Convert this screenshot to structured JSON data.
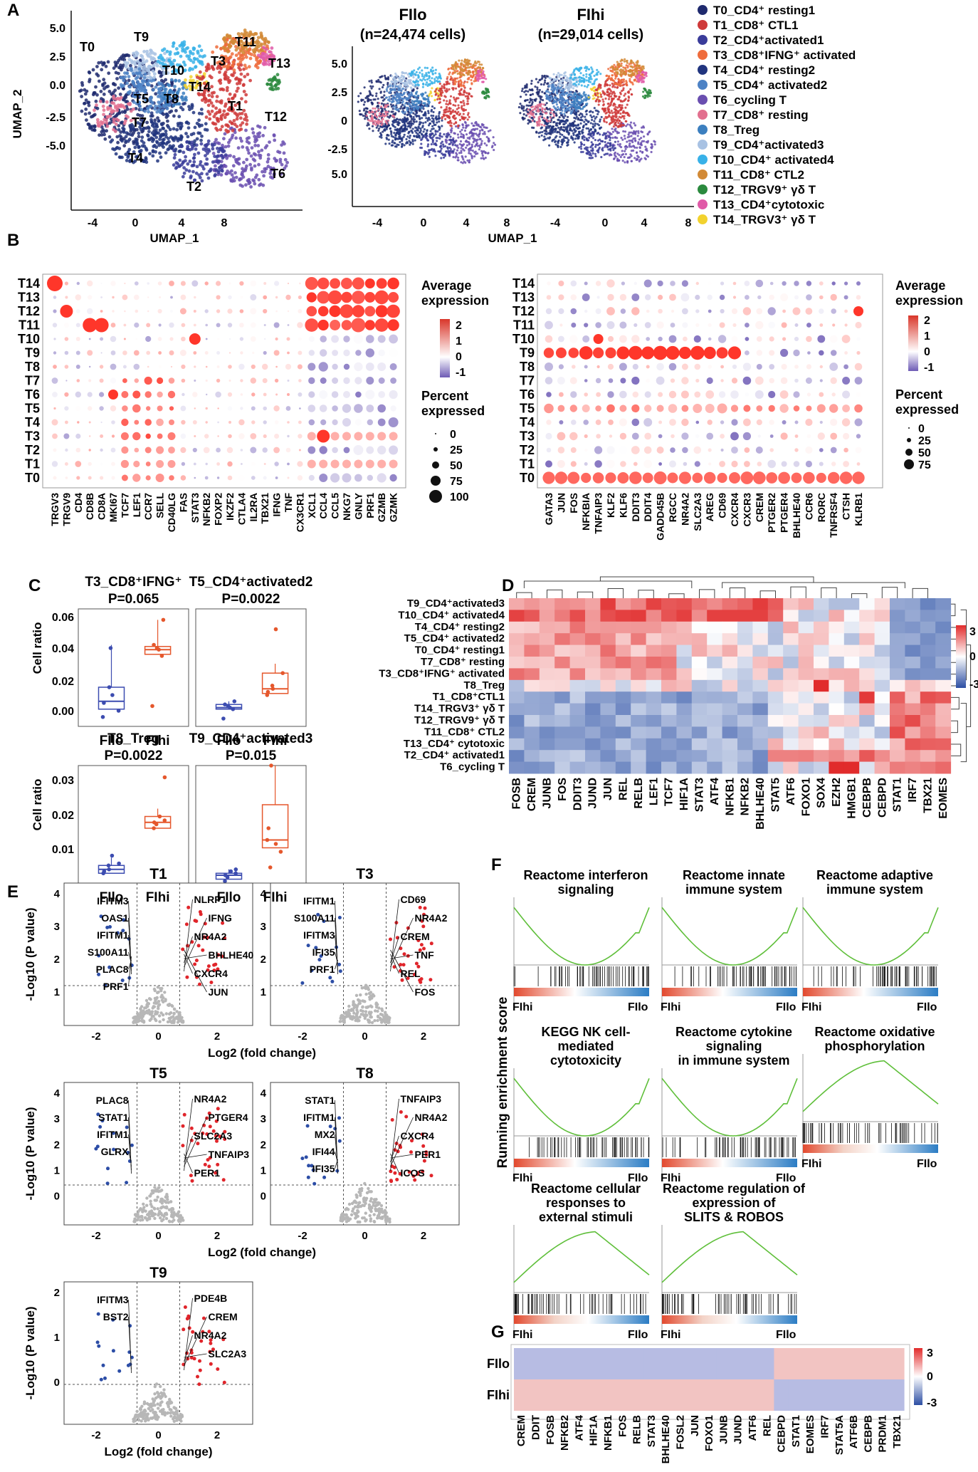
{
  "panels": {
    "a": "A",
    "b": "B",
    "c": "C",
    "d": "D",
    "e": "E",
    "f": "F",
    "g": "G"
  },
  "panelA": {
    "y_label": "UMAP_2",
    "x_label": "UMAP_1",
    "left_yticks": [
      "5.0",
      "2.5",
      "0.0",
      "-2.5",
      "-5.0"
    ],
    "left_xticks": [
      "-4",
      "0",
      "4",
      "8"
    ],
    "mid_yticks": [
      "5.0",
      "2.5",
      "0",
      "-2.5",
      "5.0"
    ],
    "right_xticks": [
      "-4",
      "0",
      "4",
      "8"
    ],
    "lo_title": "FIlo",
    "lo_sub": "(n=24,474 cells)",
    "hi_title": "FIhi",
    "hi_sub": "(n=29,014 cells)",
    "cluster_labels": [
      "T0",
      "T9",
      "T11",
      "T13",
      "T3",
      "T10",
      "T14",
      "T5",
      "T8",
      "T1",
      "T12",
      "T7",
      "T4",
      "T2",
      "T6"
    ],
    "clusters": [
      {
        "label": "T0_CD4⁺ resting1",
        "color": "#1f2a6e"
      },
      {
        "label": "T1_CD8⁺ CTL1",
        "color": "#cf3a3a"
      },
      {
        "label": "T2_CD4⁺activated1",
        "color": "#3a3c9a"
      },
      {
        "label": "T3_CD8⁺IFNG⁺ activated",
        "color": "#ef6c3c"
      },
      {
        "label": "T4_CD4⁺ resting2",
        "color": "#21357f"
      },
      {
        "label": "T5_CD4⁺ activated2",
        "color": "#4d82c5"
      },
      {
        "label": "T6_cycling T",
        "color": "#6a4fb0"
      },
      {
        "label": "T7_CD8⁺ resting",
        "color": "#e2708f"
      },
      {
        "label": "T8_Treg",
        "color": "#3c7fbf"
      },
      {
        "label": "T9_CD4⁺activated3",
        "color": "#a8c2e3"
      },
      {
        "label": "T10_CD4⁺ activated4",
        "color": "#38b1e8"
      },
      {
        "label": "T11_CD8⁺ CTL2",
        "color": "#d28a36"
      },
      {
        "label": "T12_TRGV9⁺ γδ T",
        "color": "#2b8a3e"
      },
      {
        "label": "T13_CD4⁺cytotoxic",
        "color": "#e05aa8"
      },
      {
        "label": "T14_TRGV3⁺ γδ T",
        "color": "#f2d22e"
      }
    ]
  },
  "panelB": {
    "rows": [
      "T14",
      "T13",
      "T12",
      "T11",
      "T10",
      "T9",
      "T8",
      "T7",
      "T6",
      "T5",
      "T4",
      "T3",
      "T2",
      "T1",
      "T0"
    ],
    "left_genes": [
      "TRGV3",
      "TRGV9",
      "CD4",
      "CD8B",
      "CD8A",
      "MKI67",
      "TCF7",
      "LEF1",
      "CCR7",
      "SELL",
      "CD40LG",
      "FAS",
      "STAT3",
      "NFKB2",
      "FOXP2",
      "IKZF2",
      "CTLA4",
      "IL2RA",
      "TBX21",
      "IFNG",
      "TNF",
      "CX3CR1",
      "XCL1",
      "CCL4",
      "CCL5",
      "NKG7",
      "GNLY",
      "PRF1",
      "GZMB",
      "GZMK"
    ],
    "right_genes": [
      "GATA3",
      "JUN",
      "FOS",
      "NFKBIA",
      "TNFAIP3",
      "KLF2",
      "KLF6",
      "DDIT3",
      "DDIT4",
      "GADD45B",
      "RGCC",
      "NR4A2",
      "SLC2A3",
      "AREG",
      "CD69",
      "CXCR4",
      "CXCR3",
      "CREM",
      "PTGER2",
      "PTGER4",
      "BHLHE40",
      "CCR6",
      "RORC",
      "TNFRSF4",
      "CTSH",
      "KLRB1"
    ],
    "avg_title1": "Average",
    "avg_title2": "expression",
    "avg_ticks": [
      "2",
      "1",
      "0",
      "-1"
    ],
    "pct_title1": "Percent",
    "pct_title2": "expressed",
    "pct_left": [
      "0",
      "25",
      "50",
      "75",
      "100"
    ],
    "pct_right": [
      "0",
      "25",
      "50",
      "75"
    ]
  },
  "panelC": {
    "ylabel": "Cell ratio",
    "groups": [
      "FIlo",
      "FIhi"
    ],
    "plots": [
      {
        "title": "T3_CD8⁺IFNG⁺",
        "p": "P=0.065",
        "yticks": [
          "0.06",
          "0.04",
          "0.02",
          "0.00"
        ]
      },
      {
        "title": "T5_CD4⁺activated2",
        "p": "P=0.0022",
        "yticks": []
      },
      {
        "title": "T8_Treg",
        "p": "P=0.0022",
        "yticks": [
          "0.03",
          "0.02",
          "0.01"
        ]
      },
      {
        "title": "T9_CD4⁺activated3",
        "p": "P=0.015",
        "yticks": []
      }
    ]
  },
  "panelD": {
    "rows": [
      "T9_CD4⁺activated3",
      "T10_CD4⁺ activated4",
      "T4_CD4⁺ resting2",
      "T5_CD4⁺ activated2",
      "T0_CD4⁺ resting1",
      "T7_CD8⁺ resting",
      "T3_CD8⁺IFNG⁺ activated",
      "T8_Treg",
      "T1_CD8⁺CTL1",
      "T14_TRGV3⁺ γδ T",
      "T12_TRGV9⁺ γδ T",
      "T11_CD8⁺ CTL2",
      "T13_CD4⁺ cytotoxic",
      "T2_CD4⁺ activated1",
      "T6_cycling T"
    ],
    "cols": [
      "FOSB",
      "CREM",
      "JUNB",
      "FOS",
      "DDIT3",
      "JUND",
      "JUN",
      "REL",
      "RELB",
      "LEF1",
      "TCF7",
      "HIF1A",
      "STAT3",
      "ATF4",
      "NFKB1",
      "NFKB2",
      "BHLHE40",
      "STAT5",
      "ATF6",
      "FOXO1",
      "SOX4",
      "EZH2",
      "HMGB1",
      "CEBPB",
      "CEBPD",
      "STAT1",
      "IRF7",
      "TBX21",
      "EOMES"
    ],
    "scale": [
      "3",
      "0",
      "-3"
    ]
  },
  "panelE": {
    "ylabel": "-Log10 (P value)",
    "xlabel": "Log2 (fold change)",
    "plots": [
      {
        "title": "T1",
        "up": [
          "NLRP1",
          "IFNG",
          "NR4A2",
          "BHLHE40",
          "CXCR4",
          "JUN"
        ],
        "down": [
          "IFITM3",
          "OAS1",
          "IFITM1",
          "S100A11",
          "PLAC8",
          "PRF1"
        ]
      },
      {
        "title": "T3",
        "up": [
          "CD69",
          "NR4A2",
          "CREM",
          "TNF",
          "REL",
          "FOS"
        ],
        "down": [
          "IFITM1",
          "S100A11",
          "IFITM3",
          "IFI35",
          "PRF1"
        ]
      },
      {
        "title": "T5",
        "up": [
          "NR4A2",
          "PTGER4",
          "SLC2A3",
          "TNFAIP3",
          "PER1"
        ],
        "down": [
          "PLAC8",
          "STAT1",
          "IFITM1",
          "GLRX"
        ]
      },
      {
        "title": "T8",
        "up": [
          "TNFAIP3",
          "NR4A2",
          "CXCR4",
          "PER1",
          "ICOS"
        ],
        "down": [
          "STAT1",
          "IFITM1",
          "MX2",
          "IFI44",
          "IFI35"
        ]
      },
      {
        "title": "T9",
        "up": [
          "PDE4B",
          "CREM",
          "NR4A2",
          "SLC2A3"
        ],
        "down": [
          "IFITM3",
          "BST2"
        ]
      }
    ]
  },
  "panelF": {
    "ylabel": "Running enrichment score",
    "left": "FIhi",
    "right": "FIlo",
    "plots": [
      {
        "t1": "Reactome interferon",
        "t2": "signaling",
        "shape": "down"
      },
      {
        "t1": "Reactome innate",
        "t2": "immune system",
        "shape": "down"
      },
      {
        "t1": "Reactome adaptive",
        "t2": "immune system",
        "shape": "down"
      },
      {
        "t1": "KEGG NK cell-",
        "t2": "mediated",
        "t3": "cytotoxicity",
        "shape": "down"
      },
      {
        "t1": "Reactome cytokine",
        "t2": "signaling",
        "t3": "in immune system",
        "shape": "down"
      },
      {
        "t1": "Reactome oxidative",
        "t2": "phosphorylation",
        "shape": "up"
      },
      {
        "t1": "Reactome cellular",
        "t2": "responses to",
        "t3": "external stimuli",
        "shape": "up"
      },
      {
        "t1": "Reactome regulation of",
        "t2": "expression of",
        "t3": "SLITS & ROBOS",
        "shape": "up"
      }
    ]
  },
  "panelG": {
    "rows": [
      "FIlo",
      "FIhi"
    ],
    "cols": [
      "CREM",
      "DDIT",
      "FOSB",
      "NFKB2",
      "ATF4",
      "HIF1A",
      "NFKB1",
      "FOS",
      "RELB",
      "STAT3",
      "BHLHE40",
      "FOSL2",
      "JUN",
      "FOXO1",
      "JUNB",
      "JUND",
      "ATF6",
      "REL",
      "CEBPD",
      "STAT1",
      "EOMES",
      "IRF7",
      "STAT5A",
      "ATF6B",
      "CEBPB",
      "PRDM1",
      "TBX21"
    ],
    "scale": [
      "3",
      "0",
      "-3"
    ]
  }
}
